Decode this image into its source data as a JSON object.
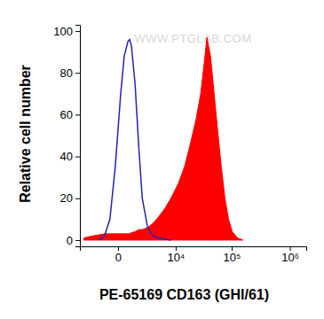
{
  "chart_data": {
    "type": "area",
    "x_label": "PE-65169 CD163 (GHI/61)",
    "y_label": "Relative cell number",
    "annotations": [
      "WWW.PTGLAB.COM"
    ],
    "log": "x",
    "grid": false,
    "xlim": [
      -4000,
      1900000
    ],
    "ylim": [
      -3,
      103
    ],
    "xticks": [
      0,
      {
        "value": 10000,
        "label": "10⁴"
      },
      {
        "value": 100000,
        "label": "10⁵"
      },
      {
        "value": 1000000,
        "label": "10⁶"
      }
    ],
    "yticks": [
      0,
      20,
      40,
      60,
      80,
      100
    ],
    "x": [
      -3260,
      -1950,
      -1270,
      -805,
      -430,
      -130,
      130,
      320,
      550,
      670,
      800,
      1100,
      1450,
      1840,
      2550,
      3420,
      4500,
      6100,
      8100,
      11200,
      14600,
      19100,
      23800,
      28700,
      33200,
      37000,
      42800,
      49500,
      57200,
      66100,
      76300,
      88100,
      102000,
      126000,
      156000
    ],
    "series": [
      {
        "type": "line",
        "color": "#2424b0",
        "values": [
          null,
          null,
          0,
          2,
          10,
          35,
          70,
          88,
          95,
          96,
          93,
          75,
          45,
          20,
          6,
          2,
          1,
          0.5,
          0,
          null,
          null,
          null,
          null,
          null,
          null,
          null,
          null,
          null,
          null,
          null,
          null,
          null,
          null,
          null,
          null
        ]
      },
      {
        "type": "area",
        "color": "#ff0000",
        "values": [
          1,
          2,
          2.5,
          3,
          3,
          3,
          3,
          3,
          3,
          3,
          3.5,
          4,
          5,
          5,
          6,
          8,
          11,
          15,
          20,
          27,
          35,
          47,
          58,
          70,
          85,
          97,
          88,
          70,
          52,
          35,
          20,
          10,
          4,
          1,
          0
        ]
      }
    ]
  }
}
